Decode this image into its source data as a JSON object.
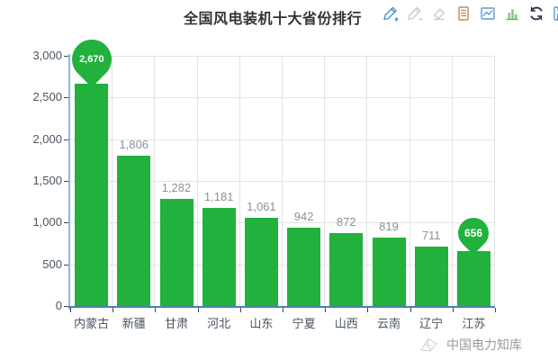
{
  "header": {
    "title": "全国风电装机十大省份排行"
  },
  "toolbar": {
    "icons": [
      {
        "name": "mark-pencil-add-icon",
        "color": "#4a8fd4"
      },
      {
        "name": "mark-pencil-undo-icon",
        "color": "#c6cacd"
      },
      {
        "name": "mark-clear-eraser-icon",
        "color": "#c6cacd"
      },
      {
        "name": "data-view-icon",
        "color": "#b98b5e"
      },
      {
        "name": "switch-line-chart-icon",
        "color": "#5b9bd1"
      },
      {
        "name": "switch-bar-chart-icon",
        "color": "#5db85d"
      },
      {
        "name": "restore-refresh-icon",
        "color": "#252e44"
      },
      {
        "name": "save-image-disk-icon",
        "color": "#5b9bd1"
      }
    ]
  },
  "chart_data": {
    "type": "bar",
    "title": "全国风电装机十大省份排行",
    "xlabel": "",
    "ylabel": "",
    "categories": [
      "内蒙古",
      "新疆",
      "甘肃",
      "河北",
      "山东",
      "宁夏",
      "山西",
      "云南",
      "辽宁",
      "江苏"
    ],
    "values": [
      2670,
      1806,
      1282,
      1181,
      1061,
      942,
      872,
      819,
      711,
      656
    ],
    "value_labels": [
      "2,670",
      "1,806",
      "1,282",
      "1,181",
      "1,061",
      "942",
      "872",
      "819",
      "711",
      "656"
    ],
    "ylim": [
      0,
      3000
    ],
    "yticks": [
      0,
      500,
      1000,
      1500,
      2000,
      2500,
      3000
    ],
    "ytick_labels": [
      "0",
      "500",
      "1,000",
      "1,500",
      "2,000",
      "2,500",
      "3,000"
    ],
    "grid": true,
    "legend": "none",
    "bar_color": "#21b13c",
    "value_label_color": "#8b9298",
    "axis_label_color": "#49545f",
    "grid_color": "#e3e3e3",
    "markers": {
      "max": {
        "index": 0,
        "label": "2,670",
        "size": 44,
        "font": 11
      },
      "min": {
        "index": 9,
        "label": "656",
        "size": 34,
        "font": 12
      }
    }
  },
  "footer": {
    "watermark_text": "中国电力知库"
  }
}
